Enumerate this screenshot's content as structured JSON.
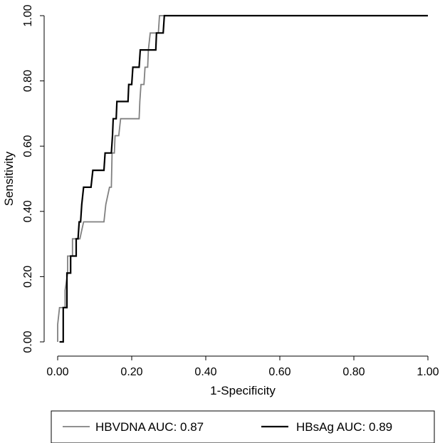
{
  "chart_data": {
    "type": "line",
    "xlabel": "1-Specificity",
    "ylabel": "Sensitivity",
    "xlim": [
      0,
      1
    ],
    "ylim": [
      0,
      1
    ],
    "x_ticks": [
      "0.00",
      "0.20",
      "0.40",
      "0.60",
      "0.80",
      "1.00"
    ],
    "y_ticks": [
      "0.00",
      "0.20",
      "0.40",
      "0.60",
      "0.80",
      "1.00"
    ],
    "grid": false,
    "legend_position": "bottom",
    "series": [
      {
        "name": "HBVDNA AUC: 0.87",
        "color": "#808080",
        "points": [
          [
            0.0,
            0.0
          ],
          [
            0.0,
            0.053
          ],
          [
            0.005,
            0.105
          ],
          [
            0.02,
            0.105
          ],
          [
            0.02,
            0.158
          ],
          [
            0.027,
            0.211
          ],
          [
            0.027,
            0.263
          ],
          [
            0.04,
            0.263
          ],
          [
            0.04,
            0.316
          ],
          [
            0.06,
            0.316
          ],
          [
            0.07,
            0.368
          ],
          [
            0.125,
            0.368
          ],
          [
            0.13,
            0.421
          ],
          [
            0.14,
            0.474
          ],
          [
            0.145,
            0.474
          ],
          [
            0.147,
            0.579
          ],
          [
            0.153,
            0.579
          ],
          [
            0.155,
            0.632
          ],
          [
            0.165,
            0.632
          ],
          [
            0.17,
            0.684
          ],
          [
            0.22,
            0.684
          ],
          [
            0.222,
            0.737
          ],
          [
            0.225,
            0.789
          ],
          [
            0.233,
            0.789
          ],
          [
            0.236,
            0.842
          ],
          [
            0.243,
            0.842
          ],
          [
            0.245,
            0.895
          ],
          [
            0.25,
            0.947
          ],
          [
            0.27,
            0.947
          ],
          [
            0.272,
            0.947
          ],
          [
            0.275,
            1.0
          ],
          [
            1.0,
            1.0
          ]
        ]
      },
      {
        "name": "HBsAg AUC: 0.89",
        "color": "#000000",
        "points": [
          [
            0.005,
            0.0
          ],
          [
            0.015,
            0.0
          ],
          [
            0.015,
            0.105
          ],
          [
            0.025,
            0.105
          ],
          [
            0.025,
            0.211
          ],
          [
            0.035,
            0.211
          ],
          [
            0.035,
            0.263
          ],
          [
            0.05,
            0.263
          ],
          [
            0.05,
            0.316
          ],
          [
            0.055,
            0.316
          ],
          [
            0.058,
            0.368
          ],
          [
            0.062,
            0.368
          ],
          [
            0.065,
            0.421
          ],
          [
            0.07,
            0.474
          ],
          [
            0.09,
            0.474
          ],
          [
            0.095,
            0.526
          ],
          [
            0.125,
            0.526
          ],
          [
            0.128,
            0.579
          ],
          [
            0.145,
            0.579
          ],
          [
            0.148,
            0.632
          ],
          [
            0.15,
            0.684
          ],
          [
            0.158,
            0.684
          ],
          [
            0.16,
            0.737
          ],
          [
            0.19,
            0.737
          ],
          [
            0.192,
            0.789
          ],
          [
            0.2,
            0.789
          ],
          [
            0.203,
            0.842
          ],
          [
            0.22,
            0.842
          ],
          [
            0.223,
            0.895
          ],
          [
            0.25,
            0.895
          ],
          [
            0.25,
            0.895
          ],
          [
            0.265,
            0.895
          ],
          [
            0.267,
            0.947
          ],
          [
            0.285,
            0.947
          ],
          [
            0.288,
            1.0
          ],
          [
            1.0,
            1.0
          ]
        ]
      }
    ]
  }
}
